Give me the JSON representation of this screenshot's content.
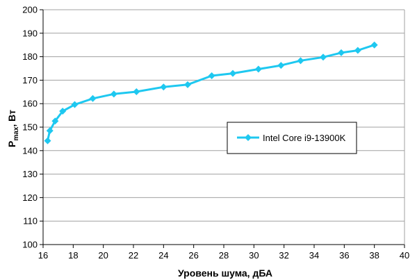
{
  "chart_data": {
    "type": "line",
    "title": "",
    "xlabel": "Уровень шума, дБА",
    "ylabel": {
      "main": "P",
      "sub": "max",
      "rest": ", Вт"
    },
    "xlim": [
      16,
      40
    ],
    "ylim": [
      100,
      200
    ],
    "xticks": [
      16,
      18,
      20,
      22,
      24,
      26,
      28,
      30,
      32,
      34,
      36,
      38,
      40
    ],
    "yticks": [
      100,
      110,
      120,
      130,
      140,
      150,
      160,
      170,
      180,
      190,
      200
    ],
    "grid": "horizontal",
    "legend_position": "right",
    "colors": {
      "series": "#1ec8f0",
      "axis": "#000000",
      "grid": "#a0a0a0"
    },
    "series": [
      {
        "name": "Intel Core i9-13900K",
        "marker": "diamond",
        "x": [
          16.3,
          16.45,
          16.8,
          17.3,
          18.1,
          19.3,
          20.7,
          22.2,
          24.0,
          25.6,
          27.2,
          28.6,
          30.3,
          31.8,
          33.1,
          34.6,
          35.8,
          36.9,
          38.0
        ],
        "y": [
          144.2,
          148.5,
          152.6,
          156.8,
          159.6,
          162.2,
          164.1,
          165.1,
          167.1,
          168.1,
          171.9,
          172.9,
          174.7,
          176.3,
          178.3,
          179.8,
          181.7,
          182.7,
          185.0
        ]
      }
    ]
  }
}
